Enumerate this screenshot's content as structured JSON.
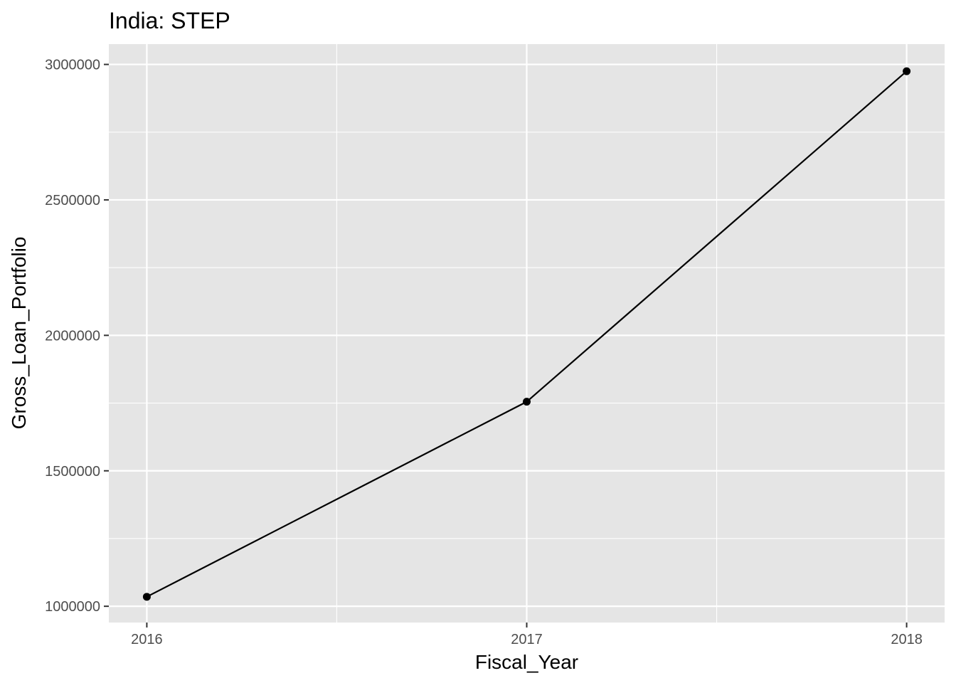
{
  "chart_data": {
    "type": "line",
    "title": "India:  STEP",
    "xlabel": "Fiscal_Year",
    "ylabel": "Gross_Loan_Portfolio",
    "x": [
      2016,
      2017,
      2018
    ],
    "series": [
      {
        "values": [
          1035000,
          1755000,
          2975000
        ]
      }
    ],
    "xticks": [
      "2016",
      "2017",
      "2018"
    ],
    "yticks": [
      "1000000",
      "1500000",
      "2000000",
      "2500000",
      "3000000"
    ],
    "xlim": [
      2015.9,
      2018.1
    ],
    "ylim": [
      940000,
      3075000
    ],
    "grid": true,
    "legend": "none",
    "colors": {
      "panel": "#e5e5e5",
      "grid": "#ffffff",
      "line": "#000000",
      "tick_text": "#4d4d4d"
    }
  }
}
